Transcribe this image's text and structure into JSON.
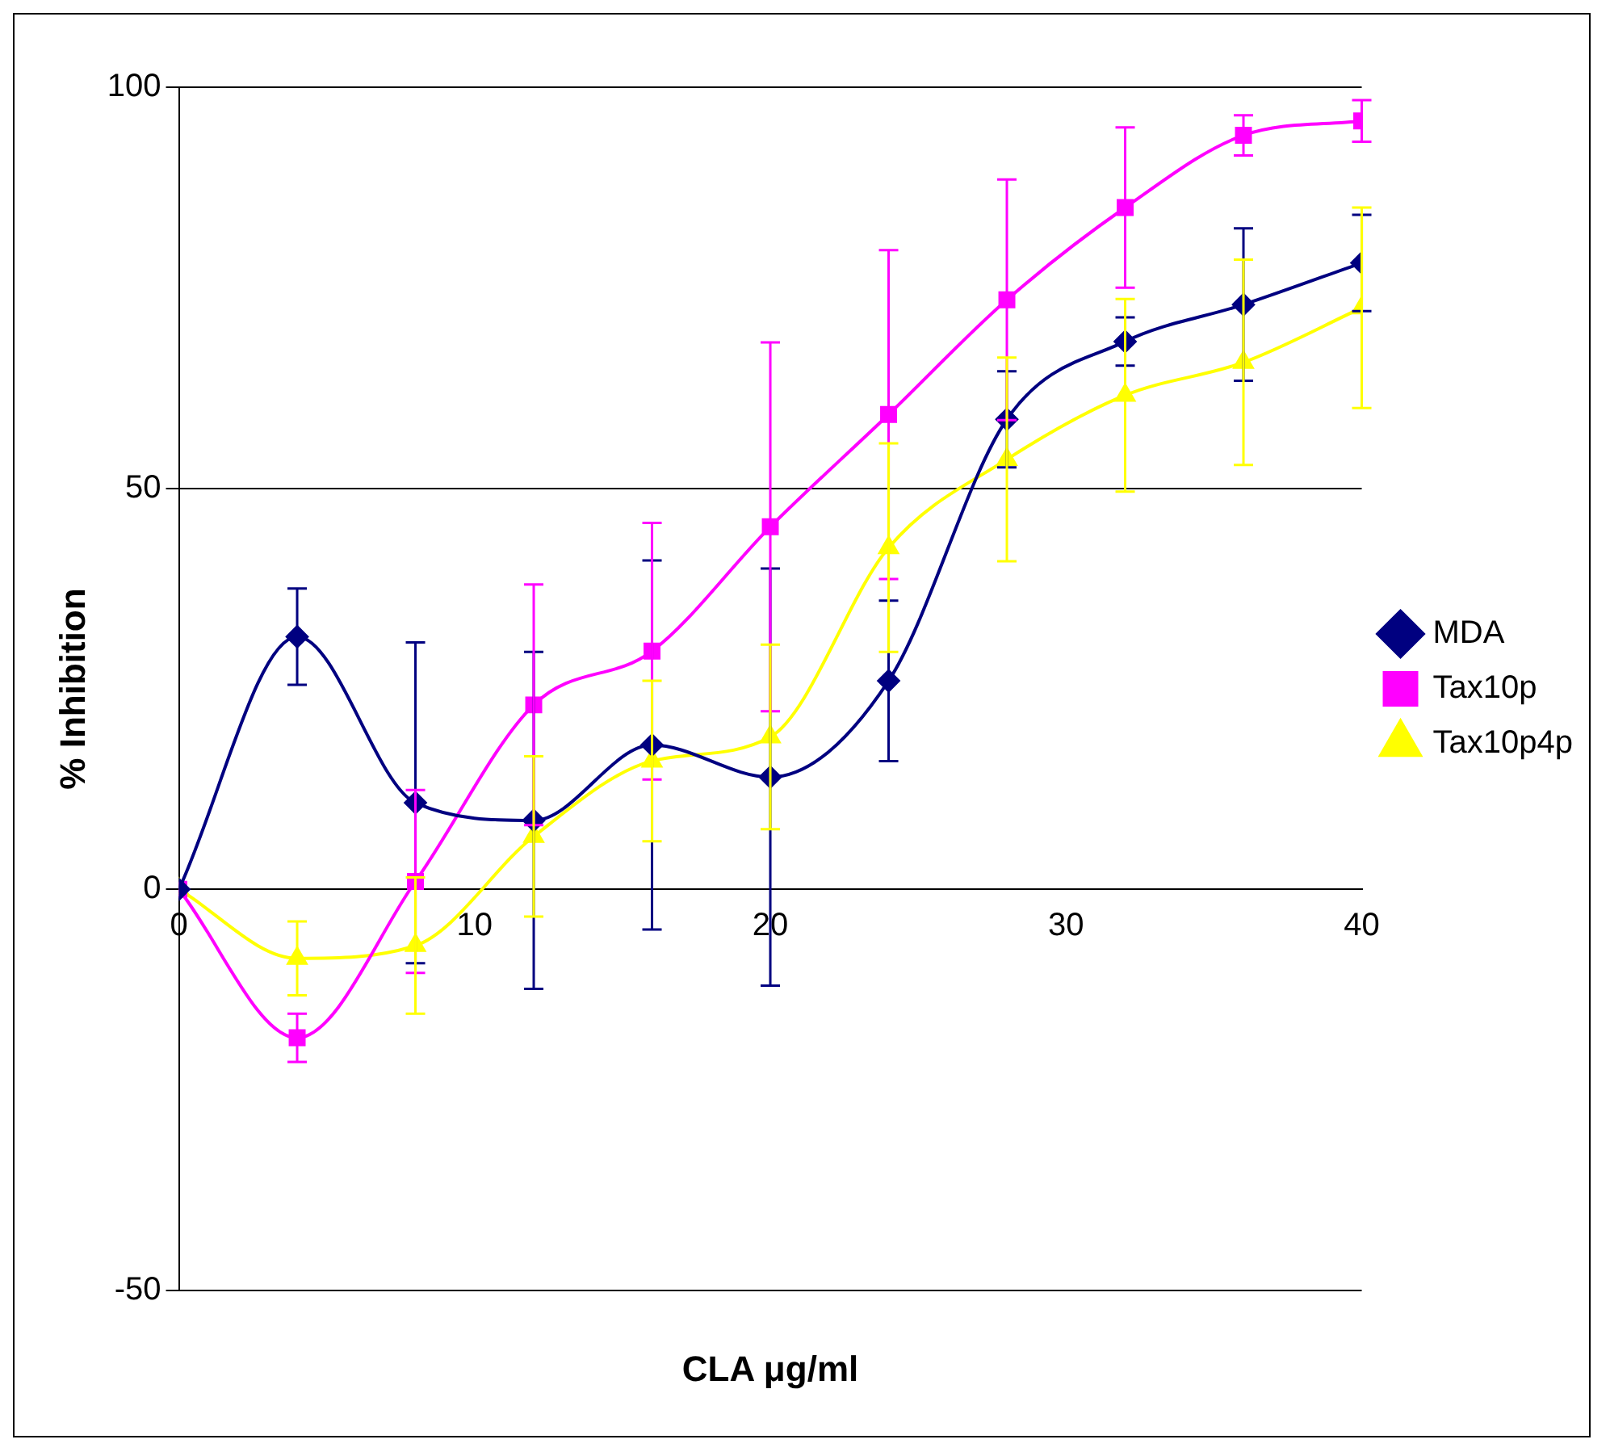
{
  "chart_data": {
    "type": "line",
    "xlabel": "CLA μg/ml",
    "ylabel": "% Inhibition",
    "x": [
      0,
      4,
      8,
      12,
      16,
      20,
      24,
      28,
      32,
      36,
      40
    ],
    "xlim": [
      0,
      40
    ],
    "xticks": [
      0,
      10,
      20,
      30,
      40
    ],
    "ylim": [
      -50,
      100
    ],
    "yticks": [
      -50,
      0,
      50,
      100
    ],
    "grid": "y",
    "legend": "right",
    "series": [
      {
        "name": "MDA",
        "color": "#000080",
        "marker": "diamond",
        "values": [
          0,
          31.5,
          10.8,
          8.6,
          18,
          14,
          26,
          58.6,
          68.3,
          72.9,
          78.1
        ],
        "errors": [
          null,
          6,
          20,
          21,
          23,
          26,
          10,
          6,
          3,
          9.5,
          6
        ]
      },
      {
        "name": "Tax10p",
        "color": "#ff00ff",
        "marker": "square",
        "values": [
          0,
          -18.5,
          1,
          23,
          29.7,
          45.2,
          59.2,
          73.5,
          85,
          94,
          95.8
        ],
        "errors": [
          null,
          3,
          11.4,
          15,
          16,
          23,
          20.5,
          15,
          10,
          2.5,
          2.6
        ]
      },
      {
        "name": "Tax10p4p",
        "color": "#ffff00",
        "marker": "triangle",
        "values": [
          0,
          -8.6,
          -7,
          6.6,
          16,
          19,
          42.6,
          53.6,
          61.6,
          65.7,
          72.5
        ],
        "errors": [
          null,
          4.6,
          8.5,
          10,
          10,
          11.5,
          13,
          12.7,
          12,
          12.8,
          12.5
        ]
      }
    ]
  }
}
